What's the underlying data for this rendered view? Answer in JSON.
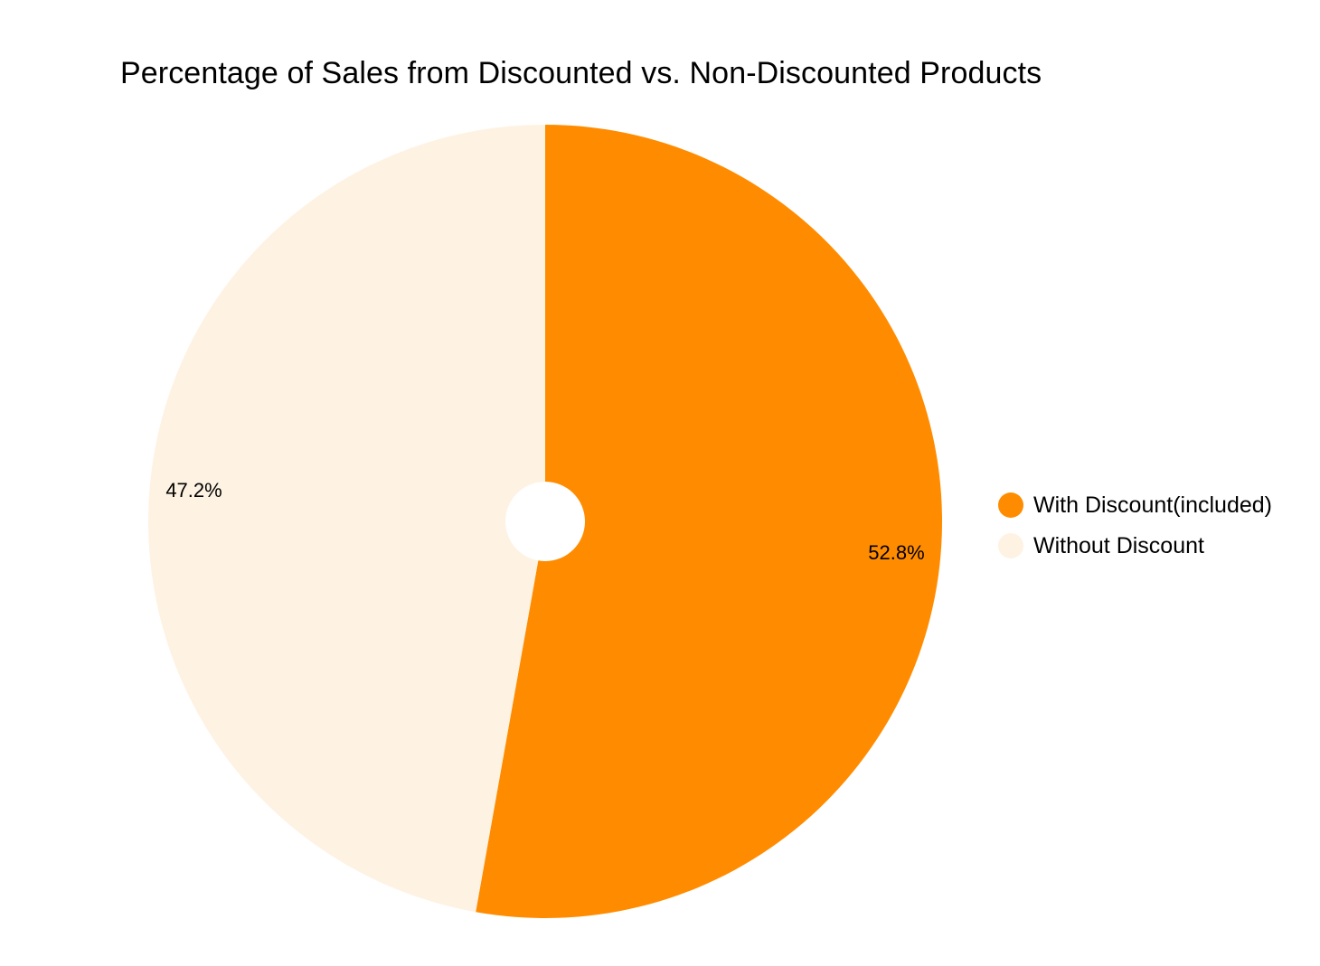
{
  "chart_data": {
    "type": "pie",
    "title": "Percentage of Sales from Discounted vs. Non-Discounted Products",
    "categories": [
      "With Discount(included)",
      "Without Discount"
    ],
    "values": [
      52.8,
      47.2
    ],
    "labels": [
      "52.8%",
      "47.2%"
    ],
    "colors": [
      "#ff8c00",
      "#fef2e3"
    ],
    "start_angle_deg": 0,
    "direction": "clockwise",
    "donut_hole": true,
    "legend_position": "right"
  }
}
